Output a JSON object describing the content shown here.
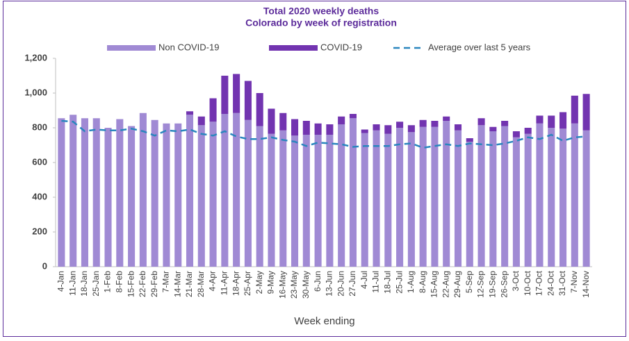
{
  "chart_data": {
    "type": "stacked_bar_line",
    "title": [
      "Total 2020 weekly deaths",
      "Colorado by week of registration"
    ],
    "x_label": "Week ending",
    "categories": [
      "4-Jan",
      "11-Jan",
      "18-Jan",
      "25-Jan",
      "1-Feb",
      "8-Feb",
      "15-Feb",
      "22-Feb",
      "29-Feb",
      "7-Mar",
      "14-Mar",
      "21-Mar",
      "28-Mar",
      "4-Apr",
      "11-Apr",
      "18-Apr",
      "25-Apr",
      "2-May",
      "9-May",
      "16-May",
      "23-May",
      "30-May",
      "6-Jun",
      "13-Jun",
      "20-Jun",
      "27-Jun",
      "4-Jul",
      "11-Jul",
      "18-Jul",
      "25-Jul",
      "1-Aug",
      "8-Aug",
      "15-Aug",
      "22-Aug",
      "29-Aug",
      "5-Sep",
      "12-Sep",
      "19-Sep",
      "26-Sep",
      "3-Oct",
      "10-Oct",
      "17-Oct",
      "24-Oct",
      "31-Oct",
      "7-Nov",
      "14-Nov"
    ],
    "series": [
      {
        "name": "Non COVID-19",
        "color": "#a08ad4",
        "kind": "bar",
        "values": [
          855,
          875,
          855,
          855,
          800,
          850,
          810,
          885,
          845,
          825,
          825,
          875,
          815,
          835,
          880,
          885,
          845,
          810,
          765,
          785,
          755,
          760,
          760,
          760,
          820,
          855,
          770,
          785,
          765,
          800,
          775,
          805,
          805,
          840,
          785,
          720,
          815,
          780,
          810,
          745,
          765,
          825,
          800,
          795,
          825,
          785
        ]
      },
      {
        "name": "COVID-19",
        "color": "#7234b0",
        "kind": "bar",
        "values": [
          0,
          0,
          0,
          0,
          0,
          0,
          0,
          0,
          0,
          0,
          0,
          20,
          50,
          135,
          220,
          225,
          225,
          190,
          145,
          100,
          95,
          80,
          65,
          60,
          45,
          25,
          20,
          35,
          50,
          35,
          40,
          40,
          35,
          25,
          35,
          20,
          40,
          25,
          30,
          35,
          35,
          45,
          70,
          95,
          160,
          210
        ]
      },
      {
        "name": "Average over last 5 years",
        "color": "#2a86be",
        "kind": "line",
        "dashed": true,
        "values": [
          840,
          835,
          780,
          790,
          785,
          785,
          795,
          780,
          755,
          785,
          780,
          790,
          765,
          755,
          780,
          750,
          735,
          735,
          745,
          730,
          720,
          695,
          715,
          710,
          705,
          690,
          695,
          695,
          695,
          705,
          710,
          685,
          695,
          705,
          695,
          710,
          705,
          700,
          710,
          725,
          745,
          735,
          760,
          725,
          745,
          750
        ]
      }
    ],
    "ylim": [
      0,
      1200
    ],
    "yticks": [
      0,
      200,
      400,
      600,
      800,
      {
        "value": 1000,
        "label": "1,000"
      },
      {
        "value": 1200,
        "label": "1,200"
      }
    ],
    "grid": false,
    "legend": "top"
  }
}
